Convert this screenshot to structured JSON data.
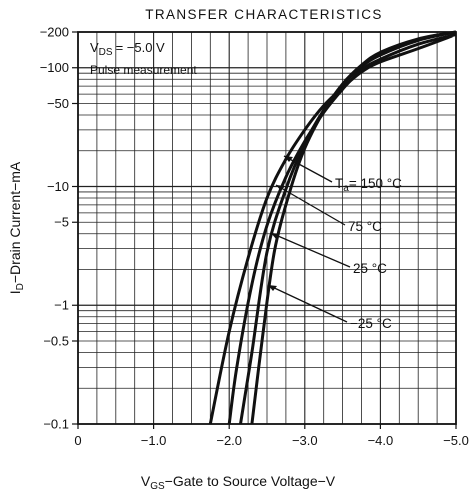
{
  "chart_data": {
    "type": "line",
    "title": "TRANSFER CHARACTERISTICS",
    "xlabel": "Gate to Source Voltage",
    "xlabel_prefix": "V",
    "xlabel_sub": "GS",
    "xlabel_dash": "−",
    "xlabel_unit": "−V",
    "ylabel_prefix": "I",
    "ylabel_sub": "D",
    "ylabel": "−Drain Current−mA",
    "x_scale": "linear",
    "y_scale": "log",
    "xlim": [
      0,
      -5.0
    ],
    "ylim": [
      -0.1,
      -200
    ],
    "x_ticks": [
      0,
      -1.0,
      -2.0,
      -3.0,
      -4.0,
      -5.0
    ],
    "x_tick_labels": [
      "0",
      "−1.0",
      "−2.0",
      "−3.0",
      "−4.0",
      "−5.0"
    ],
    "y_ticks": [
      -200,
      -100,
      -50,
      -10,
      -5,
      -1,
      -0.5,
      -0.1
    ],
    "y_tick_labels": [
      "−200",
      "−100",
      "−50",
      "−10",
      "−5",
      "−1",
      "−0.5",
      "−0.1"
    ],
    "grid": true,
    "conditions": {
      "vds_prefix": "V",
      "vds_sub": "DS",
      "vds_value": "= −5.0 V",
      "note": "Pulse measurement"
    },
    "series": [
      {
        "name": "Ta = 150 °C",
        "label_prefix": "T",
        "label_sub": "a",
        "label_value": "= 150 °C",
        "x": [
          -1.75,
          -2.0,
          -2.25,
          -2.5,
          -2.75,
          -3.0,
          -3.25,
          -3.5,
          -3.75,
          -4.0,
          -4.5,
          -4.95
        ],
        "y": [
          -0.1,
          -0.6,
          -2.5,
          -8.0,
          -17,
          -30,
          -48,
          -68,
          -92,
          -112,
          -145,
          -185
        ]
      },
      {
        "name": "75 °C",
        "label_prefix": "",
        "label_sub": "",
        "label_value": "75 °C",
        "x": [
          -2.0,
          -2.1,
          -2.3,
          -2.5,
          -2.75,
          -3.0,
          -3.25,
          -3.5,
          -3.75,
          -4.0,
          -4.5,
          -5.0
        ],
        "y": [
          -0.1,
          -0.3,
          -1.5,
          -4.7,
          -12,
          -24,
          -42,
          -66,
          -96,
          -118,
          -158,
          -190
        ]
      },
      {
        "name": "25 °C",
        "label_prefix": "",
        "label_sub": "",
        "label_value": "25 °C",
        "x": [
          -2.15,
          -2.3,
          -2.5,
          -2.75,
          -3.0,
          -3.25,
          -3.5,
          -3.75,
          -4.0,
          -4.5,
          -5.0
        ],
        "y": [
          -0.1,
          -0.4,
          -2.8,
          -9.5,
          -23,
          -44,
          -72,
          -102,
          -128,
          -170,
          -200
        ]
      },
      {
        "name": "−25 °C",
        "label_prefix": "",
        "label_sub": "",
        "label_value": "−25 °C",
        "x": [
          -2.3,
          -2.45,
          -2.6,
          -2.8,
          -3.0,
          -3.25,
          -3.5,
          -3.75,
          -4.0,
          -4.5,
          -5.0
        ],
        "y": [
          -0.1,
          -0.6,
          -2.9,
          -9.0,
          -21,
          -43,
          -73,
          -105,
          -135,
          -175,
          -200
        ]
      }
    ]
  }
}
